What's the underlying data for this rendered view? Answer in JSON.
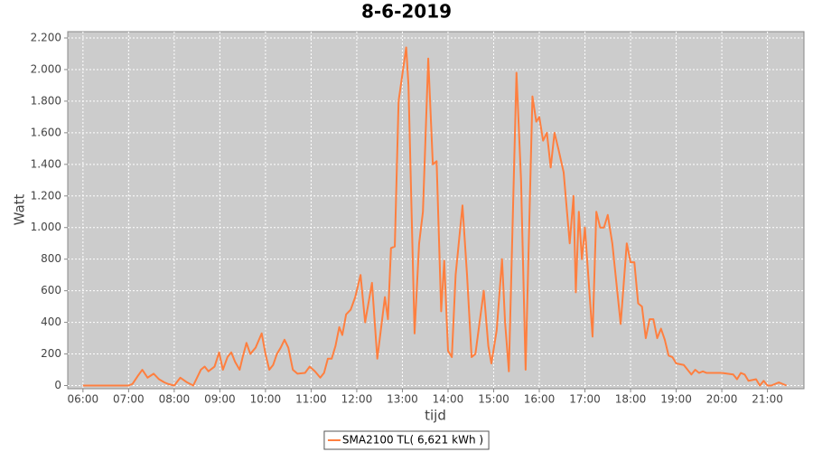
{
  "chart_data": {
    "type": "line",
    "title": "8-6-2019",
    "x_label": "tijd",
    "y_label": "Watt",
    "x": [
      "06:00",
      "06:30",
      "07:00",
      "07:05",
      "07:12",
      "07:18",
      "07:25",
      "07:33",
      "07:40",
      "07:47",
      "07:52",
      "08:00",
      "08:08",
      "08:17",
      "08:25",
      "08:35",
      "08:40",
      "08:45",
      "08:53",
      "08:59",
      "09:04",
      "09:10",
      "09:15",
      "09:20",
      "09:26",
      "09:30",
      "09:35",
      "09:40",
      "09:47",
      "09:55",
      "10:00",
      "10:05",
      "10:10",
      "10:15",
      "10:20",
      "10:25",
      "10:30",
      "10:36",
      "10:42",
      "10:52",
      "10:58",
      "11:05",
      "11:12",
      "11:17",
      "11:22",
      "11:27",
      "11:32",
      "11:37",
      "11:41",
      "11:46",
      "11:52",
      "11:58",
      "12:05",
      "12:11",
      "12:20",
      "12:27",
      "12:37",
      "12:41",
      "12:45",
      "12:50",
      "12:55",
      "13:05",
      "13:08",
      "13:16",
      "13:22",
      "13:27",
      "13:34",
      "13:40",
      "13:45",
      "13:51",
      "13:55",
      "14:00",
      "14:05",
      "14:10",
      "14:19",
      "14:25",
      "14:31",
      "14:36",
      "14:47",
      "14:53",
      "14:57",
      "15:04",
      "15:11",
      "15:15",
      "15:20",
      "15:30",
      "15:36",
      "15:42",
      "15:51",
      "15:56",
      "16:00",
      "16:05",
      "16:10",
      "16:15",
      "16:20",
      "16:25",
      "16:32",
      "16:40",
      "16:45",
      "16:48",
      "16:52",
      "16:56",
      "17:00",
      "17:10",
      "17:15",
      "17:20",
      "17:25",
      "17:30",
      "17:36",
      "17:47",
      "17:55",
      "18:00",
      "18:05",
      "18:10",
      "18:15",
      "18:20",
      "18:25",
      "18:30",
      "18:35",
      "18:40",
      "18:45",
      "18:50",
      "18:55",
      "19:00",
      "19:10",
      "19:15",
      "19:20",
      "19:25",
      "19:30",
      "19:35",
      "19:40",
      "19:45",
      "20:00",
      "20:15",
      "20:20",
      "20:25",
      "20:30",
      "20:35",
      "20:45",
      "20:50",
      "20:55",
      "21:00",
      "21:05",
      "21:15",
      "21:25"
    ],
    "series": [
      {
        "name": "SMA2100 TL( 6,621 kWh )",
        "color": "#ff7f3f",
        "values": [
          0,
          0,
          0,
          10,
          60,
          100,
          50,
          75,
          40,
          20,
          10,
          0,
          50,
          20,
          0,
          100,
          120,
          90,
          120,
          210,
          100,
          180,
          210,
          150,
          100,
          180,
          270,
          200,
          240,
          330,
          200,
          100,
          130,
          200,
          240,
          290,
          240,
          100,
          75,
          80,
          120,
          90,
          50,
          80,
          170,
          170,
          250,
          370,
          320,
          450,
          480,
          560,
          700,
          400,
          650,
          170,
          560,
          420,
          870,
          880,
          1800,
          2140,
          1900,
          330,
          900,
          1100,
          2070,
          1400,
          1420,
          470,
          790,
          220,
          180,
          700,
          1140,
          700,
          180,
          200,
          600,
          250,
          140,
          350,
          800,
          400,
          90,
          1980,
          1300,
          100,
          1830,
          1670,
          1700,
          1550,
          1600,
          1380,
          1600,
          1500,
          1350,
          900,
          1200,
          590,
          1100,
          800,
          1000,
          310,
          1100,
          1000,
          1000,
          1080,
          900,
          390,
          900,
          780,
          780,
          520,
          500,
          300,
          420,
          420,
          300,
          360,
          290,
          190,
          180,
          140,
          130,
          100,
          70,
          100,
          80,
          90,
          80,
          80,
          80,
          70,
          40,
          80,
          70,
          30,
          40,
          0,
          30,
          0,
          0,
          20,
          0
        ]
      }
    ],
    "xlim": [
      "05:40",
      "21:48"
    ],
    "xticks": [
      "06:00",
      "07:00",
      "08:00",
      "09:00",
      "10:00",
      "11:00",
      "12:00",
      "13:00",
      "14:00",
      "15:00",
      "16:00",
      "17:00",
      "18:00",
      "19:00",
      "20:00",
      "21:00"
    ],
    "ylim": [
      -20,
      2240
    ],
    "yticks": [
      0,
      200,
      400,
      600,
      800,
      {
        "value": 1000,
        "label": "1.000"
      },
      {
        "value": 1200,
        "label": "1.200"
      },
      {
        "value": 1400,
        "label": "1.400"
      },
      {
        "value": 1600,
        "label": "1.600"
      },
      {
        "value": 1800,
        "label": "1.800"
      },
      {
        "value": 2000,
        "label": "2.000"
      },
      {
        "value": 2200,
        "label": "2.200"
      }
    ],
    "grid": true,
    "legend": "bottom"
  }
}
